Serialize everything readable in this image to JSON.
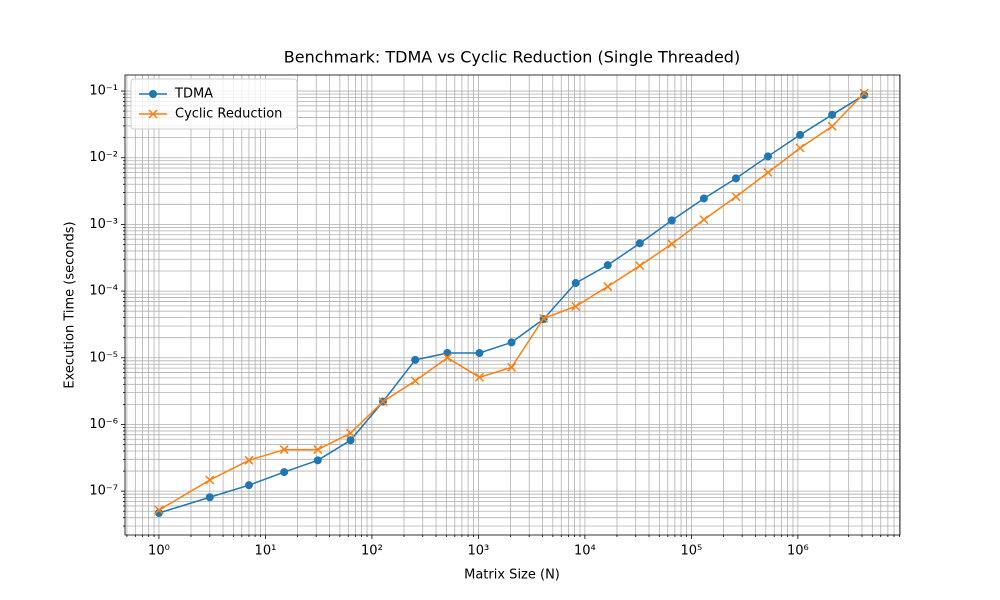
{
  "chart_data": {
    "type": "line",
    "title": "Benchmark: TDMA vs Cyclic Reduction (Single Threaded)",
    "x_label": "Matrix Size (N)",
    "y_label": "Execution Time (seconds)",
    "x_scale": "log",
    "y_scale": "log",
    "grid": "both",
    "legend": "upper left",
    "x": [
      1,
      3,
      7,
      15,
      31,
      63,
      127,
      255,
      511,
      1023,
      2047,
      4095,
      8191,
      16383,
      32767,
      65535,
      131071,
      262143,
      524287,
      1048575,
      2097151,
      4194303
    ],
    "series": [
      {
        "name": "TDMA",
        "color": "#1f77b4",
        "marker": "o",
        "values": [
          4.7e-08,
          8.1e-08,
          1.23e-07,
          1.93e-07,
          2.9e-07,
          5.8e-07,
          2.2e-06,
          9.3e-06,
          1.18e-05,
          1.18e-05,
          1.7e-05,
          3.8e-05,
          0.000132,
          0.000245,
          0.00052,
          0.00115,
          0.00245,
          0.0049,
          0.0105,
          0.022,
          0.044,
          0.087
        ]
      },
      {
        "name": "Cyclic Reduction",
        "color": "#ff7f0e",
        "marker": "x",
        "values": [
          5.2e-08,
          1.47e-07,
          2.9e-07,
          4.2e-07,
          4.2e-07,
          7.4e-07,
          2.2e-06,
          4.5e-06,
          1e-05,
          5.1e-06,
          7.2e-06,
          3.9e-05,
          5.9e-05,
          0.000117,
          0.00024,
          0.00051,
          0.00118,
          0.0026,
          0.006,
          0.014,
          0.0296,
          0.093
        ]
      }
    ],
    "xlim": [
      0.48,
      9100000.0
    ],
    "ylim": [
      2.2e-08,
      0.174
    ],
    "xticks": [
      {
        "value": 1,
        "label": "10⁰"
      },
      {
        "value": 10,
        "label": "10¹"
      },
      {
        "value": 100,
        "label": "10²"
      },
      {
        "value": 1000,
        "label": "10³"
      },
      {
        "value": 10000,
        "label": "10⁴"
      },
      {
        "value": 100000,
        "label": "10⁵"
      },
      {
        "value": 1000000,
        "label": "10⁶"
      }
    ],
    "yticks": [
      {
        "value": 1e-07,
        "label": "10⁻⁷"
      },
      {
        "value": 1e-06,
        "label": "10⁻⁶"
      },
      {
        "value": 1e-05,
        "label": "10⁻⁵"
      },
      {
        "value": 0.0001,
        "label": "10⁻⁴"
      },
      {
        "value": 0.001,
        "label": "10⁻³"
      },
      {
        "value": 0.01,
        "label": "10⁻²"
      },
      {
        "value": 0.1,
        "label": "10⁻¹"
      }
    ]
  }
}
